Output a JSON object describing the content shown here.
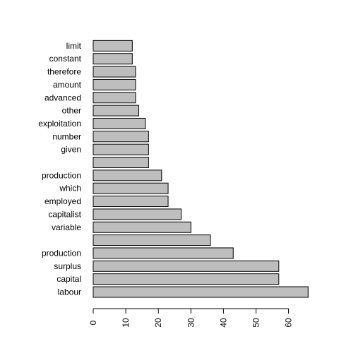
{
  "chart_data": {
    "type": "bar",
    "orientation": "horizontal",
    "categories": [
      "labour",
      "capital",
      "surplus",
      "production",
      "",
      "variable",
      "capitalist",
      "employed",
      "which",
      "production",
      "",
      "given",
      "number",
      "exploitation",
      "other",
      "advanced",
      "amount",
      "therefore",
      "constant",
      "limit"
    ],
    "values": [
      66,
      57,
      57,
      43,
      36,
      30,
      27,
      23,
      23,
      21,
      17,
      17,
      17,
      16,
      14,
      13,
      13,
      13,
      12,
      12
    ],
    "title": "",
    "xlabel": "",
    "ylabel": "",
    "xlim": [
      0,
      66
    ],
    "x_ticks": [
      0,
      10,
      20,
      30,
      40,
      50,
      60
    ],
    "bar_color": "#bebebe",
    "grid": false
  }
}
